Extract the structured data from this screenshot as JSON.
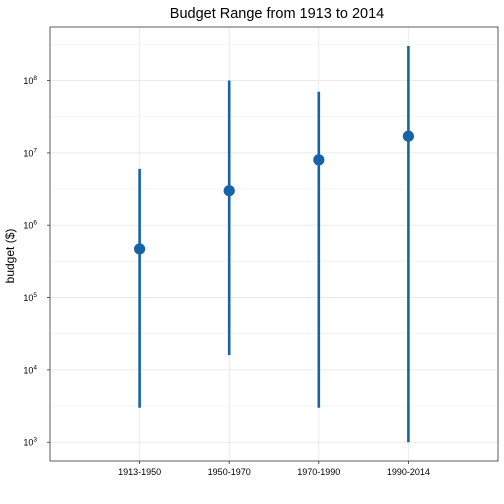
{
  "chart_data": {
    "type": "scatter",
    "title": "Budget Range from 1913 to 2014",
    "xlabel": "",
    "ylabel": "budget ($)",
    "y_scale": "log10",
    "ylim": [
      550,
      550000000
    ],
    "grid": true,
    "categories": [
      "1913-1950",
      "1950-1970",
      "1970-1990",
      "1990-2014"
    ],
    "y_ticks": [
      {
        "base": "10",
        "exp": "3",
        "value": 1000
      },
      {
        "base": "10",
        "exp": "4",
        "value": 10000
      },
      {
        "base": "10",
        "exp": "5",
        "value": 100000
      },
      {
        "base": "10",
        "exp": "6",
        "value": 1000000
      },
      {
        "base": "10",
        "exp": "7",
        "value": 10000000
      },
      {
        "base": "10",
        "exp": "8",
        "value": 100000000
      }
    ],
    "series": [
      {
        "values": [
          470000,
          3000000,
          8000000,
          17000000
        ],
        "min": [
          3000,
          16000,
          3000,
          1000
        ],
        "max": [
          6000000,
          100000000,
          70000000,
          300000000
        ]
      }
    ],
    "colors": {
      "series": "#1763a8",
      "grid": "#ebebeb",
      "panel_border": "#333333",
      "text": "#000000"
    }
  }
}
